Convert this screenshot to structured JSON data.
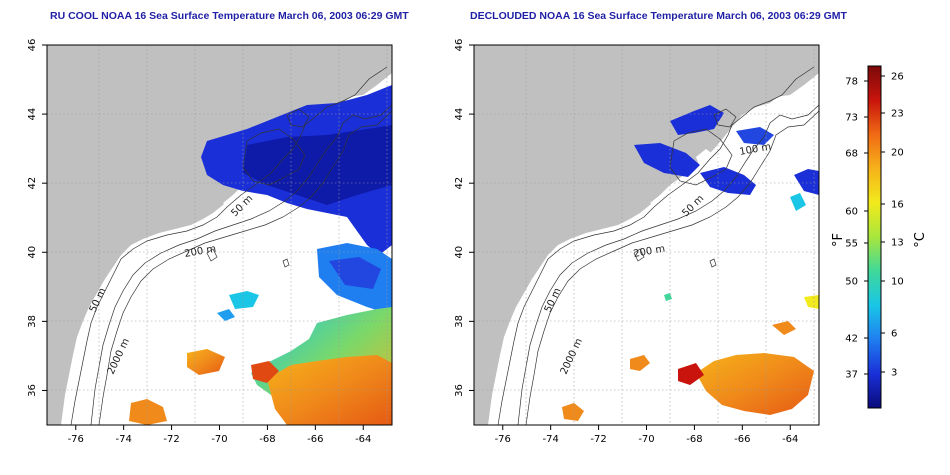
{
  "panels": [
    {
      "title": "RU COOL NOAA 16 Sea Surface Temperature March 06, 2003 06:29 GMT",
      "contour_labels": [
        "50 m",
        "200 m",
        "50 m",
        "2000 m"
      ]
    },
    {
      "title": "DECLOUDED NOAA 16 Sea Surface Temperature March 06, 2003 06:29 GMT",
      "contour_labels": [
        "100 m",
        "50 m",
        "200 m",
        "50 m",
        "2000 m"
      ]
    }
  ],
  "axes": {
    "x_ticks": [
      "-76",
      "-74",
      "-72",
      "-70",
      "-68",
      "-66",
      "-64"
    ],
    "y_ticks": [
      "46",
      "44",
      "42",
      "40",
      "38",
      "36"
    ],
    "x_range": [
      -77.2,
      -62.8
    ],
    "y_range": [
      35.0,
      46.0
    ],
    "grid": "dotted"
  },
  "colorbar": {
    "f_label": "°F",
    "c_label": "°C",
    "f_ticks": [
      "78",
      "73",
      "68",
      "60",
      "55",
      "50",
      "42",
      "37"
    ],
    "c_ticks": [
      "26",
      "23",
      "20",
      "16",
      "13",
      "10",
      "6",
      "3"
    ],
    "colors": [
      "#0a0a7a",
      "#1a2fd8",
      "#1f7ef0",
      "#19c6e6",
      "#3fd89a",
      "#a8e63c",
      "#f2ea1c",
      "#f6b21a",
      "#f06a14",
      "#c8140c",
      "#7a0a0a"
    ]
  },
  "colors": {
    "land": "#c0c0c0",
    "water": "#ffffff",
    "frame": "#000000",
    "title": "#1f1fa6"
  }
}
